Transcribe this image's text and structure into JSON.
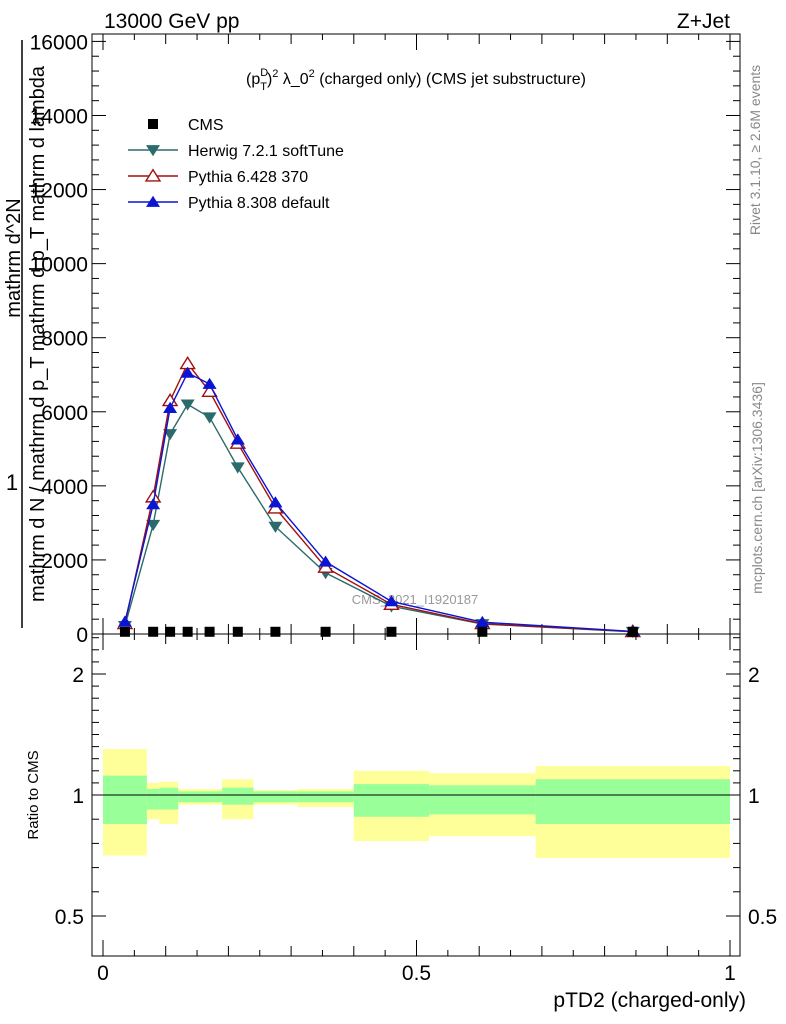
{
  "header": {
    "left": "13000 GeV pp",
    "right": "Z+Jet"
  },
  "side_labels": {
    "rivet": "Rivet 3.1.10, ≥ 2.6M events",
    "mcplots": "mcplots.cern.ch [arXiv:1306.3436]"
  },
  "colors": {
    "cms": "#000000",
    "herwig": "#2c6b6b",
    "pythia6": "#a01010",
    "pythia8": "#0a14d2",
    "band_outer": "#ffff99",
    "band_inner": "#99ff99"
  },
  "chart_data": [
    {
      "type": "line",
      "title": "(p_T^D)^2 λ_0^2 (charged only) (CMS jet substructure)",
      "ylabel_numerator": "1",
      "ylabel_denominator": "mathrm d N / mathrm d p_T mathrm d p_T mathrm d lambda",
      "ylabel_top": "mathrm d^2N",
      "watermark": "CMS_2021_I1920187",
      "xlim": [
        0,
        1
      ],
      "ylim": [
        0,
        16200
      ],
      "yticks": [
        0,
        2000,
        4000,
        6000,
        8000,
        10000,
        12000,
        14000,
        16000
      ],
      "ytick_labels": [
        "0",
        "2000",
        "4000",
        "6000",
        "8000",
        "10000",
        "12000",
        "14000",
        "16000"
      ],
      "legend_position": "top-left",
      "series": [
        {
          "name": "CMS",
          "key": "cms",
          "marker": "square",
          "x": [
            0.035,
            0.08,
            0.107,
            0.135,
            0.17,
            0.215,
            0.275,
            0.355,
            0.46,
            0.605,
            0.845
          ],
          "y": [
            60,
            60,
            60,
            60,
            60,
            60,
            60,
            60,
            60,
            60,
            60
          ]
        },
        {
          "name": "Herwig 7.2.1 softTune",
          "key": "herwig",
          "marker": "triangle-down",
          "x": [
            0.035,
            0.08,
            0.107,
            0.135,
            0.17,
            0.215,
            0.275,
            0.355,
            0.46,
            0.605,
            0.845
          ],
          "y": [
            220,
            2950,
            5400,
            6200,
            5850,
            4500,
            2900,
            1650,
            750,
            270,
            60
          ]
        },
        {
          "name": "Pythia 6.428 370",
          "key": "pythia6",
          "marker": "triangle-up-open",
          "x": [
            0.035,
            0.08,
            0.107,
            0.135,
            0.17,
            0.215,
            0.275,
            0.355,
            0.46,
            0.605,
            0.845
          ],
          "y": [
            280,
            3700,
            6300,
            7300,
            6550,
            5150,
            3400,
            1800,
            800,
            280,
            65
          ]
        },
        {
          "name": "Pythia 8.308 default",
          "key": "pythia8",
          "marker": "triangle-up",
          "x": [
            0.035,
            0.08,
            0.107,
            0.135,
            0.17,
            0.215,
            0.275,
            0.355,
            0.46,
            0.605,
            0.845
          ],
          "y": [
            330,
            3500,
            6100,
            7050,
            6750,
            5250,
            3550,
            1950,
            880,
            320,
            70
          ]
        }
      ]
    },
    {
      "type": "area",
      "ylabel": "Ratio to CMS",
      "xlabel": "pTD2 (charged-only)",
      "xlim": [
        0,
        1
      ],
      "ylim": [
        0.4,
        2.35
      ],
      "xticks": [
        0,
        0.5,
        1
      ],
      "xtick_labels": [
        "0",
        "0.5",
        "1"
      ],
      "yticks": [
        0.5,
        1,
        2
      ],
      "ytick_labels": [
        "0.5",
        "1",
        "2"
      ],
      "bins": [
        {
          "x0": 0.0,
          "x1": 0.07,
          "inner_lo": 0.88,
          "inner_hi": 1.16,
          "outer_lo": 0.75,
          "outer_hi": 1.38
        },
        {
          "x0": 0.07,
          "x1": 0.09,
          "inner_lo": 0.94,
          "inner_hi": 1.05,
          "outer_lo": 0.9,
          "outer_hi": 1.1
        },
        {
          "x0": 0.09,
          "x1": 0.12,
          "inner_lo": 0.94,
          "inner_hi": 1.06,
          "outer_lo": 0.88,
          "outer_hi": 1.11
        },
        {
          "x0": 0.12,
          "x1": 0.19,
          "inner_lo": 0.97,
          "inner_hi": 1.03,
          "outer_lo": 0.96,
          "outer_hi": 1.05
        },
        {
          "x0": 0.19,
          "x1": 0.24,
          "inner_lo": 0.96,
          "inner_hi": 1.06,
          "outer_lo": 0.9,
          "outer_hi": 1.13
        },
        {
          "x0": 0.24,
          "x1": 0.31,
          "inner_lo": 0.97,
          "inner_hi": 1.03,
          "outer_lo": 0.96,
          "outer_hi": 1.04
        },
        {
          "x0": 0.31,
          "x1": 0.4,
          "inner_lo": 0.97,
          "inner_hi": 1.03,
          "outer_lo": 0.95,
          "outer_hi": 1.05
        },
        {
          "x0": 0.4,
          "x1": 0.52,
          "inner_lo": 0.91,
          "inner_hi": 1.09,
          "outer_lo": 0.81,
          "outer_hi": 1.2
        },
        {
          "x0": 0.52,
          "x1": 0.69,
          "inner_lo": 0.92,
          "inner_hi": 1.08,
          "outer_lo": 0.83,
          "outer_hi": 1.18
        },
        {
          "x0": 0.69,
          "x1": 1.0,
          "inner_lo": 0.88,
          "inner_hi": 1.13,
          "outer_lo": 0.74,
          "outer_hi": 1.24
        }
      ]
    }
  ]
}
